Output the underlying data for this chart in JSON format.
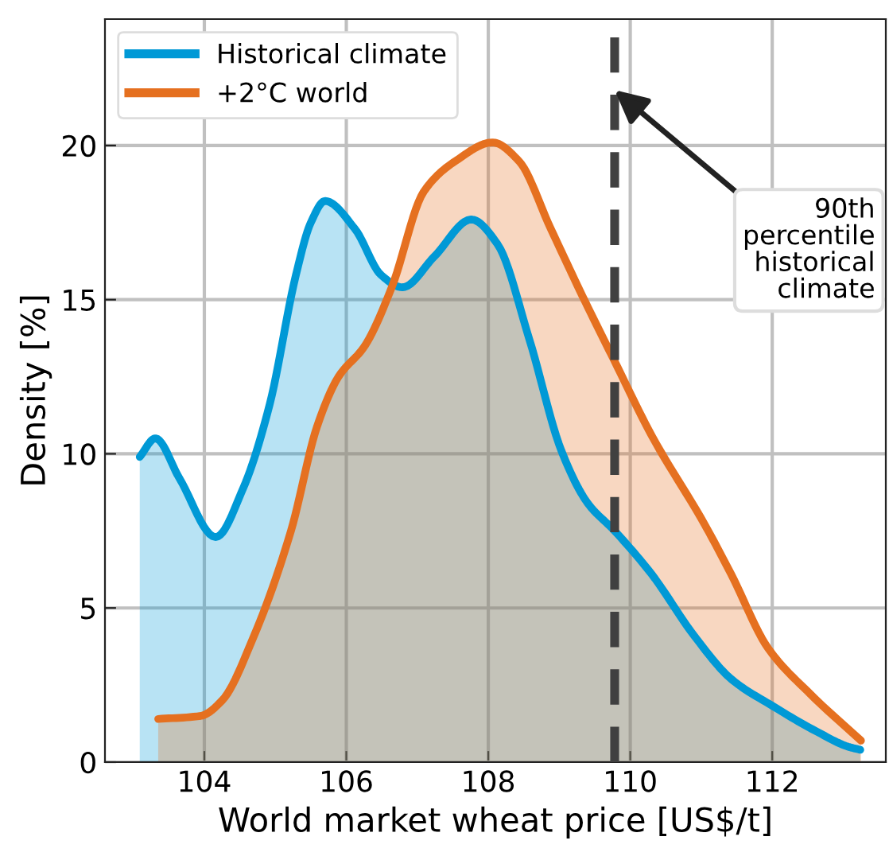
{
  "chart_data": {
    "type": "area",
    "xlabel": "World market wheat price [US$/t]",
    "ylabel": "Density [%]",
    "series": [
      {
        "name": "Historical climate",
        "color": "#0099d6",
        "x": [
          103.09,
          103.31,
          103.65,
          104.16,
          104.55,
          104.92,
          105.29,
          105.5,
          105.7,
          106.12,
          106.49,
          106.79,
          107.24,
          107.76,
          108.13,
          108.58,
          109.03,
          109.4,
          109.78,
          110.3,
          110.9,
          111.42,
          112.02,
          112.62,
          113.07,
          113.24
        ],
        "values": [
          9.9,
          10.5,
          9.2,
          7.3,
          8.9,
          11.6,
          15.8,
          17.5,
          18.2,
          17.3,
          15.8,
          15.4,
          16.4,
          17.6,
          16.8,
          13.7,
          10.1,
          8.4,
          7.5,
          6.1,
          4.1,
          2.7,
          1.8,
          1.0,
          0.5,
          0.4
        ]
      },
      {
        "name": "+2°C world",
        "color": "#e57020",
        "x": [
          103.35,
          103.95,
          104.25,
          104.7,
          105.22,
          105.59,
          105.89,
          106.26,
          106.64,
          107.09,
          107.54,
          108.06,
          108.43,
          108.88,
          109.33,
          109.78,
          110.3,
          111.05,
          111.42,
          111.94,
          112.54,
          113.25
        ],
        "values": [
          1.4,
          1.5,
          2.0,
          4.1,
          7.5,
          10.9,
          12.5,
          13.5,
          15.4,
          18.5,
          19.5,
          20.1,
          19.5,
          17.3,
          15.1,
          13.0,
          10.6,
          7.7,
          6.1,
          3.7,
          2.2,
          0.7
        ]
      }
    ],
    "ref_lines": [
      {
        "axis": "x",
        "value": 109.78,
        "color": "#404040",
        "line_style": "dashed"
      }
    ],
    "annotations": [
      {
        "text": "90th\npercentile\nhistorical\nclimate",
        "x": 109.78,
        "y": 21.8
      }
    ],
    "xlim": [
      102.6,
      113.6
    ],
    "ylim": [
      0,
      24.1
    ],
    "xticks": [
      104,
      106,
      108,
      110,
      112
    ],
    "yticks": [
      0,
      5,
      10,
      15,
      20
    ],
    "grid": true,
    "legend": "top left"
  }
}
